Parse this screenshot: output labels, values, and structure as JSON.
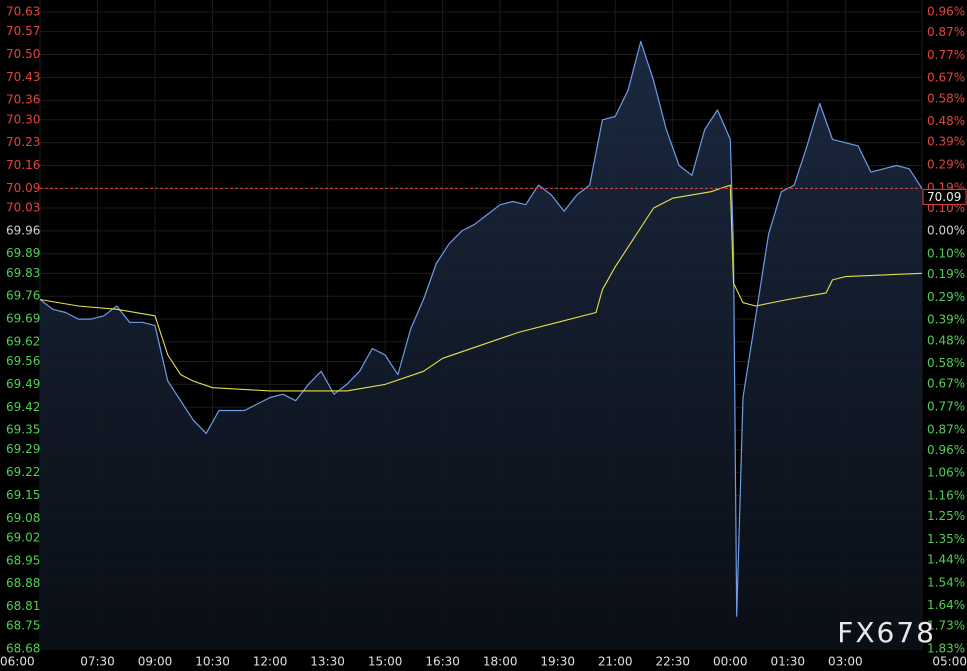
{
  "chart_data": {
    "type": "line",
    "watermark": "FX678",
    "area": true,
    "grid": true,
    "xlim": [
      "06:00",
      "05:00"
    ],
    "xticks": [
      "06:00",
      "07:30",
      "09:00",
      "10:30",
      "12:00",
      "13:30",
      "15:00",
      "16:30",
      "18:00",
      "19:30",
      "21:00",
      "22:30",
      "00:00",
      "01:30",
      "03:00",
      "05:00"
    ],
    "ylim": [
      68.68,
      70.63
    ],
    "yticks": [
      70.63,
      70.57,
      {
        "value": 70.5,
        "label": "70.50"
      },
      70.43,
      70.36,
      {
        "value": 70.3,
        "label": "70.30"
      },
      70.23,
      70.16,
      70.09,
      70.03,
      69.96,
      69.89,
      69.83,
      69.76,
      69.69,
      69.62,
      69.56,
      69.49,
      69.42,
      69.35,
      69.29,
      69.22,
      69.15,
      69.08,
      69.02,
      68.95,
      68.88,
      68.81,
      68.75,
      68.68
    ],
    "y2lim": [
      -1.83,
      0.96
    ],
    "y2ticks": [
      {
        "value": 0.96,
        "label": "0.96%"
      },
      {
        "value": 0.87,
        "label": "0.87%"
      },
      {
        "value": 0.77,
        "label": "0.77%"
      },
      {
        "value": 0.67,
        "label": "0.67%"
      },
      {
        "value": 0.58,
        "label": "0.58%"
      },
      {
        "value": 0.48,
        "label": "0.48%"
      },
      {
        "value": 0.39,
        "label": "0.39%"
      },
      {
        "value": 0.29,
        "label": "0.29%"
      },
      {
        "value": 0.19,
        "label": "0.19%"
      },
      {
        "value": 0.1,
        "label": "0.10%"
      },
      {
        "value": 0,
        "label": "0.00%"
      },
      {
        "value": -0.1,
        "label": "0.10%"
      },
      {
        "value": -0.19,
        "label": "0.19%"
      },
      {
        "value": -0.29,
        "label": "0.29%"
      },
      {
        "value": -0.39,
        "label": "0.39%"
      },
      {
        "value": -0.48,
        "label": "0.48%"
      },
      {
        "value": -0.58,
        "label": "0.58%"
      },
      {
        "value": -0.67,
        "label": "0.67%"
      },
      {
        "value": -0.77,
        "label": "0.77%"
      },
      {
        "value": -0.87,
        "label": "0.87%"
      },
      {
        "value": -0.96,
        "label": "0.96%"
      },
      {
        "value": -1.06,
        "label": "1.06%"
      },
      {
        "value": -1.16,
        "label": "1.16%"
      },
      {
        "value": -1.25,
        "label": "1.25%"
      },
      {
        "value": -1.35,
        "label": "1.35%"
      },
      {
        "value": -1.44,
        "label": "1.44%"
      },
      {
        "value": -1.54,
        "label": "1.54%"
      },
      {
        "value": -1.64,
        "label": "1.64%"
      },
      {
        "value": -1.73,
        "label": "1.73%"
      },
      {
        "value": -1.83,
        "label": "1.83%"
      }
    ],
    "last_value": 70.09,
    "series": [
      {
        "color": "#6f9be8",
        "x": [
          "06:00",
          "06:20",
          "06:40",
          "07:00",
          "07:20",
          "07:40",
          "08:00",
          "08:20",
          "08:40",
          "09:00",
          "09:20",
          "09:40",
          "10:00",
          "10:20",
          "10:40",
          "11:00",
          "11:20",
          "11:40",
          "12:00",
          "12:20",
          "12:40",
          "13:00",
          "13:20",
          "13:40",
          "14:00",
          "14:20",
          "14:40",
          "15:00",
          "15:20",
          "15:40",
          "16:00",
          "16:20",
          "16:40",
          "17:00",
          "17:20",
          "17:40",
          "18:00",
          "18:20",
          "18:40",
          "19:00",
          "19:20",
          "19:40",
          "20:00",
          "20:20",
          "20:40",
          "21:00",
          "21:20",
          "21:40",
          "22:00",
          "22:20",
          "22:40",
          "23:00",
          "23:20",
          "23:40",
          "00:00",
          "00:05",
          "00:10",
          "00:20",
          "00:40",
          "01:00",
          "01:20",
          "01:40",
          "02:00",
          "02:20",
          "02:40",
          "03:00",
          "03:20",
          "03:40",
          "04:00",
          "04:20",
          "04:40",
          "05:00"
        ],
        "values": [
          69.75,
          69.72,
          69.71,
          69.69,
          69.69,
          69.7,
          69.73,
          69.68,
          69.68,
          69.67,
          69.5,
          69.44,
          69.38,
          69.34,
          69.41,
          69.41,
          69.41,
          69.43,
          69.45,
          69.46,
          69.44,
          69.49,
          69.53,
          69.46,
          69.49,
          69.53,
          69.6,
          69.58,
          69.52,
          69.66,
          69.75,
          69.86,
          69.92,
          69.96,
          69.98,
          70.01,
          70.04,
          70.05,
          70.04,
          70.1,
          70.07,
          70.02,
          70.07,
          70.1,
          70.3,
          70.31,
          70.39,
          70.54,
          70.42,
          70.27,
          70.16,
          70.13,
          70.27,
          70.33,
          70.24,
          69.9,
          68.78,
          69.45,
          69.7,
          69.95,
          70.08,
          70.1,
          70.22,
          70.35,
          70.24,
          70.23,
          70.22,
          70.14,
          70.15,
          70.16,
          70.15,
          70.09
        ]
      },
      {
        "color": "#e6e04a",
        "x": [
          "06:00",
          "07:00",
          "08:00",
          "09:00",
          "09:20",
          "09:40",
          "10:00",
          "10:30",
          "12:00",
          "14:00",
          "15:00",
          "16:00",
          "16:30",
          "17:30",
          "18:30",
          "19:30",
          "20:30",
          "20:40",
          "21:00",
          "21:30",
          "22:00",
          "22:30",
          "23:00",
          "23:30",
          "00:00",
          "00:05",
          "00:20",
          "00:40",
          "01:30",
          "02:30",
          "02:40",
          "03:00",
          "05:00"
        ],
        "values": [
          69.75,
          69.73,
          69.72,
          69.7,
          69.58,
          69.52,
          69.5,
          69.48,
          69.47,
          69.47,
          69.49,
          69.53,
          69.57,
          69.61,
          69.65,
          69.68,
          69.71,
          69.78,
          69.85,
          69.94,
          70.03,
          70.06,
          70.07,
          70.08,
          70.1,
          69.8,
          69.74,
          69.73,
          69.75,
          69.77,
          69.81,
          69.82,
          69.83
        ]
      }
    ]
  }
}
